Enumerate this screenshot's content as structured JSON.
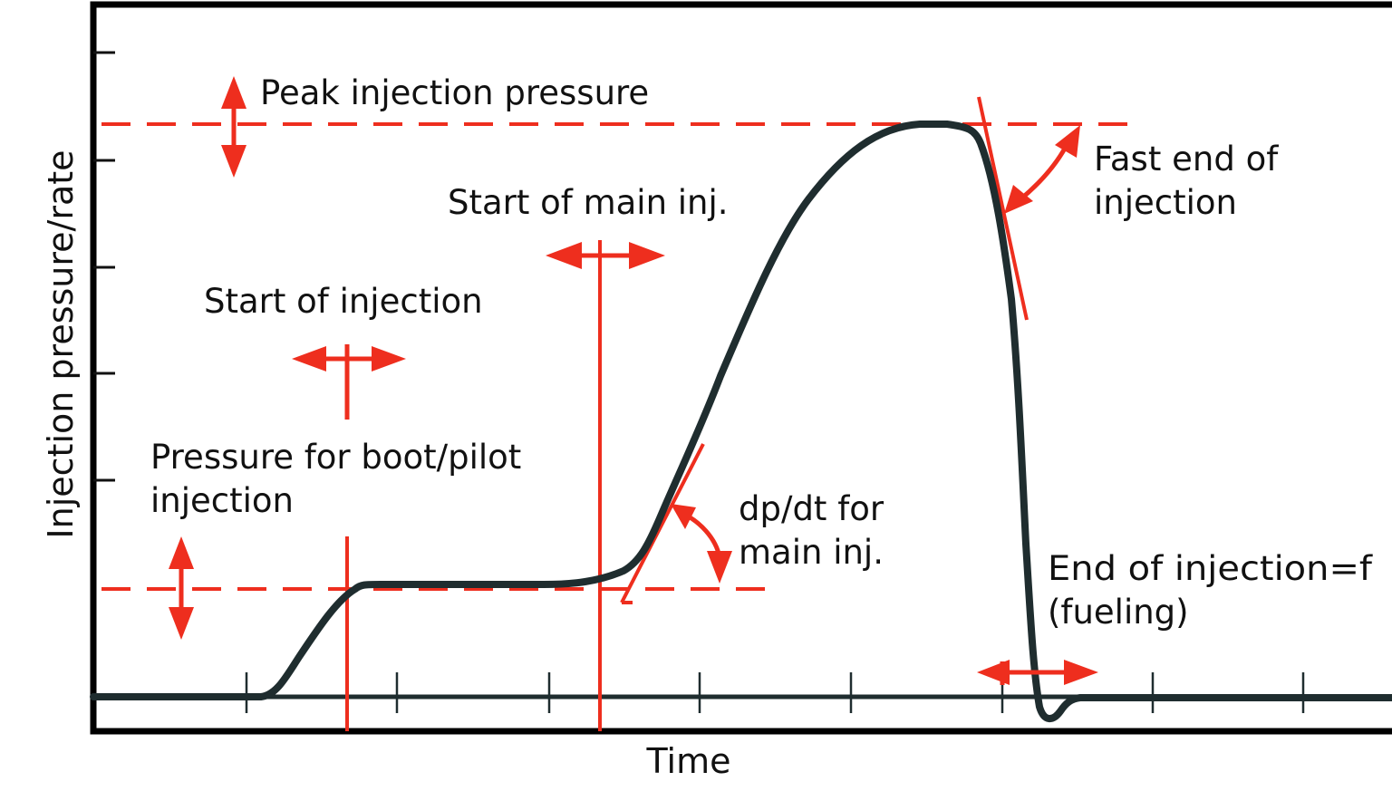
{
  "axes": {
    "x_label": "Time",
    "y_label": "Injection pressure/rate"
  },
  "annotations": {
    "peak_pressure": "Peak injection pressure",
    "start_main": "Start of main inj.",
    "start_injection": "Start of injection",
    "pilot_pressure": [
      "Pressure for boot/pilot",
      "injection"
    ],
    "dpdt": [
      "dp/dt for",
      "main inj."
    ],
    "fast_end": [
      "Fast end of",
      "injection"
    ],
    "end_injection": [
      "End of injection=f",
      "(fueling)"
    ]
  },
  "colors": {
    "curve": "#1f2d2f",
    "annotation": "#ee2e1e",
    "frame": "#000000",
    "text": "#111111"
  }
}
